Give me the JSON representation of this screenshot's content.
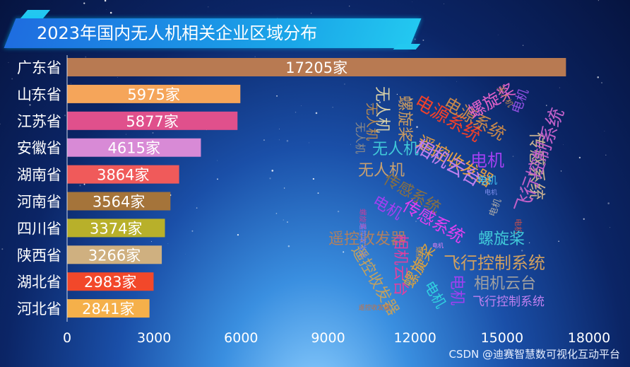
{
  "title": "2023年国内无人机相关企业区域分布",
  "watermark": "CSDN @迪赛智慧数可视化互动平台",
  "chart_data": {
    "type": "bar",
    "orientation": "horizontal",
    "title": "2023年国内无人机相关企业区域分布",
    "categories": [
      "广东省",
      "山东省",
      "江苏省",
      "安徽省",
      "湖南省",
      "河南省",
      "四川省",
      "陕西省",
      "湖北省",
      "河北省"
    ],
    "values": [
      17205,
      5975,
      5877,
      4615,
      3864,
      3564,
      3374,
      3266,
      2983,
      2841
    ],
    "value_labels": [
      "17205家",
      "5975家",
      "5877家",
      "4615家",
      "3864家",
      "3564家",
      "3374家",
      "3266家",
      "2983家",
      "2841家"
    ],
    "colors": [
      "#b87a52",
      "#f5a55a",
      "#e0508c",
      "#d88ad6",
      "#f05a5a",
      "#a5743a",
      "#b8b02a",
      "#cfb080",
      "#f2482a",
      "#f5b04a"
    ],
    "xlim": [
      0,
      18000
    ],
    "xticks": [
      "0",
      "3000",
      "6000",
      "9000",
      "12000",
      "15000",
      "18000"
    ],
    "xlabel": "",
    "ylabel": "",
    "grid": false
  },
  "wordcloud": [
    {
      "text": "无人机",
      "color": "#d8d0a8",
      "size": 22,
      "rot": 90
    },
    {
      "text": "螺旋桨",
      "color": "#c89a60",
      "size": 22,
      "rot": 90
    },
    {
      "text": "电源系统",
      "color": "#f0402a",
      "size": 26,
      "rot": 30
    },
    {
      "text": "电源系统",
      "color": "#c8884a",
      "size": 24,
      "rot": 30
    },
    {
      "text": "螺旋桨",
      "color": "#e060c8",
      "size": 24,
      "rot": -30
    },
    {
      "text": "无人机",
      "color": "#c08a50",
      "size": 11,
      "rot": 60
    },
    {
      "text": "电机",
      "color": "#9050e0",
      "size": 18,
      "rot": -70
    },
    {
      "text": "无人机",
      "color": "#b88a50",
      "size": 18,
      "rot": 90
    },
    {
      "text": "无人机",
      "color": "#8a8a8a",
      "size": 15,
      "rot": 90
    },
    {
      "text": "遥控收发器",
      "color": "#e8a040",
      "size": 24,
      "rot": 30
    },
    {
      "text": "传感系统",
      "color": "#c8b090",
      "size": 24,
      "rot": 90
    },
    {
      "text": "飞行控制系统",
      "color": "#c060c8",
      "size": 26,
      "rot": -70
    },
    {
      "text": "无人机",
      "color": "#40c8d8",
      "size": 22,
      "rot": 0
    },
    {
      "text": "无人机",
      "color": "#c8a070",
      "size": 22,
      "rot": 0
    },
    {
      "text": "相机云台",
      "color": "#c080f0",
      "size": 26,
      "rot": 30
    },
    {
      "text": "电机",
      "color": "#a040f0",
      "size": 24,
      "rot": 0
    },
    {
      "text": "传感系统",
      "color": "#8a7040",
      "size": 22,
      "rot": 30
    },
    {
      "text": "传感系统",
      "color": "#e040f0",
      "size": 24,
      "rot": 30
    },
    {
      "text": "电机",
      "color": "#40c0f0",
      "size": 14,
      "rot": 0
    },
    {
      "text": "电机",
      "color": "#8090f0",
      "size": 9,
      "rot": 0
    },
    {
      "text": "电机",
      "color": "#a8a8a8",
      "size": 13,
      "rot": -70
    },
    {
      "text": "电机",
      "color": "#c05050",
      "size": 11,
      "rot": 90
    },
    {
      "text": "电机",
      "color": "#a040f0",
      "size": 22,
      "rot": 30
    },
    {
      "text": "遥控收发器",
      "color": "#b08060",
      "size": 22,
      "rot": 0
    },
    {
      "text": "螺旋桨",
      "color": "#c040a0",
      "size": 10,
      "rot": 90
    },
    {
      "text": "遥控收发器",
      "color": "#8080f0",
      "size": 10,
      "rot": 90
    },
    {
      "text": "螺旋桨",
      "color": "#40c8d8",
      "size": 22,
      "rot": 0
    },
    {
      "text": "螺旋桨",
      "color": "#b09060",
      "size": 11,
      "rot": 90
    },
    {
      "text": "相机云台",
      "color": "#e040a0",
      "size": 22,
      "rot": 90
    },
    {
      "text": "螺旋桨",
      "color": "#d8a040",
      "size": 22,
      "rot": -60
    },
    {
      "text": "飞行控制系统",
      "color": "#d0a060",
      "size": 24,
      "rot": 0
    },
    {
      "text": "遥控收发器",
      "color": "#c0a060",
      "size": 22,
      "rot": 60
    },
    {
      "text": "电机",
      "color": "#a040f0",
      "size": 22,
      "rot": 90
    },
    {
      "text": "电机",
      "color": "#30d0e0",
      "size": 20,
      "rot": 60
    },
    {
      "text": "相机云台",
      "color": "#a0a0a0",
      "size": 22,
      "rot": 0
    },
    {
      "text": "电机",
      "color": "#e080f0",
      "size": 8,
      "rot": 0
    },
    {
      "text": "遥控收发器",
      "color": "#c87040",
      "size": 9,
      "rot": 0
    },
    {
      "text": "飞行控制系统",
      "color": "#c080f0",
      "size": 17,
      "rot": 0
    }
  ]
}
